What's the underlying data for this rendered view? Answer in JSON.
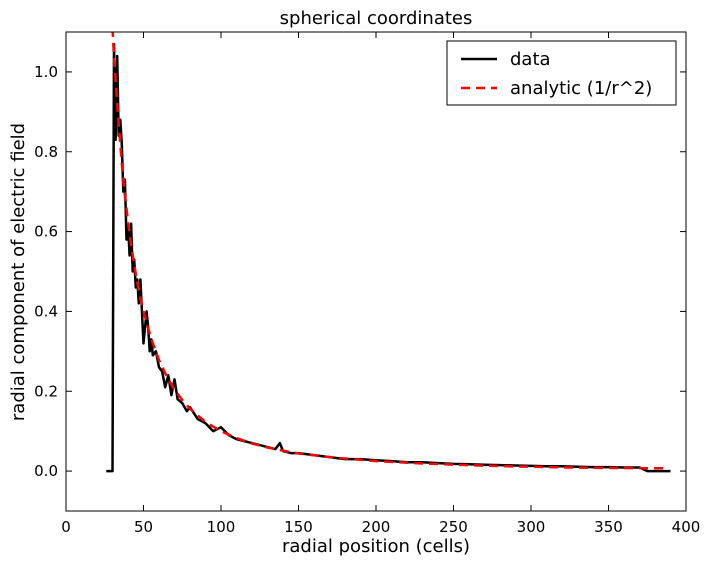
{
  "chart_data": {
    "type": "line",
    "title": "spherical coordinates",
    "xlabel": "radial position (cells)",
    "ylabel": "radial component of electric field",
    "xlim": [
      0,
      400
    ],
    "ylim": [
      -0.1,
      1.1
    ],
    "x_ticks": [
      0,
      50,
      100,
      150,
      200,
      250,
      300,
      350,
      400
    ],
    "y_ticks": [
      0.0,
      0.2,
      0.4,
      0.6,
      0.8,
      1.0
    ],
    "x_tick_labels": [
      "0",
      "50",
      "100",
      "150",
      "200",
      "250",
      "300",
      "350",
      "400"
    ],
    "y_tick_labels": [
      "0.0",
      "0.2",
      "0.4",
      "0.6",
      "0.8",
      "1.0"
    ],
    "grid": false,
    "legend_position": "top-right",
    "series": [
      {
        "name": "data",
        "color": "#000000",
        "style": "solid",
        "x": [
          26,
          30,
          31,
          32,
          33,
          34,
          35,
          36,
          37,
          38,
          39,
          40,
          41,
          42,
          43,
          44,
          45,
          46,
          47,
          48,
          50,
          52,
          53,
          54,
          55,
          56,
          58,
          60,
          62,
          64,
          66,
          68,
          70,
          72,
          75,
          78,
          80,
          85,
          90,
          95,
          100,
          105,
          110,
          115,
          120,
          125,
          130,
          135,
          138,
          140,
          145,
          150,
          160,
          170,
          180,
          190,
          200,
          210,
          220,
          230,
          240,
          250,
          260,
          270,
          280,
          290,
          300,
          310,
          320,
          330,
          340,
          350,
          360,
          370,
          375,
          380,
          390
        ],
        "y": [
          0.0,
          0.0,
          1.07,
          0.83,
          1.04,
          0.84,
          0.88,
          0.82,
          0.7,
          0.73,
          0.58,
          0.62,
          0.54,
          0.62,
          0.5,
          0.53,
          0.46,
          0.48,
          0.42,
          0.48,
          0.32,
          0.4,
          0.36,
          0.3,
          0.33,
          0.29,
          0.3,
          0.26,
          0.25,
          0.21,
          0.24,
          0.19,
          0.23,
          0.18,
          0.17,
          0.15,
          0.16,
          0.13,
          0.12,
          0.1,
          0.11,
          0.09,
          0.08,
          0.075,
          0.07,
          0.065,
          0.06,
          0.055,
          0.07,
          0.05,
          0.045,
          0.045,
          0.04,
          0.035,
          0.03,
          0.03,
          0.027,
          0.025,
          0.022,
          0.022,
          0.02,
          0.018,
          0.017,
          0.016,
          0.015,
          0.014,
          0.013,
          0.012,
          0.012,
          0.011,
          0.01,
          0.01,
          0.009,
          0.009,
          0.0,
          0.0,
          0.0
        ]
      },
      {
        "name": "analytic (1/r^2)",
        "color": "#ff0000",
        "style": "dashed",
        "x": [
          30,
          31,
          32,
          33,
          34,
          35,
          36,
          37,
          38,
          40,
          42,
          44,
          46,
          48,
          50,
          55,
          60,
          65,
          70,
          75,
          80,
          90,
          100,
          110,
          120,
          130,
          140,
          150,
          175,
          200,
          225,
          250,
          275,
          300,
          325,
          350,
          375,
          387
        ],
        "y": [
          1.11,
          1.04,
          0.98,
          0.92,
          0.87,
          0.82,
          0.77,
          0.73,
          0.69,
          0.625,
          0.567,
          0.517,
          0.473,
          0.434,
          0.4,
          0.331,
          0.278,
          0.237,
          0.204,
          0.178,
          0.156,
          0.123,
          0.1,
          0.083,
          0.069,
          0.059,
          0.051,
          0.044,
          0.033,
          0.025,
          0.02,
          0.016,
          0.013,
          0.011,
          0.009,
          0.008,
          0.007,
          0.007
        ]
      }
    ]
  }
}
